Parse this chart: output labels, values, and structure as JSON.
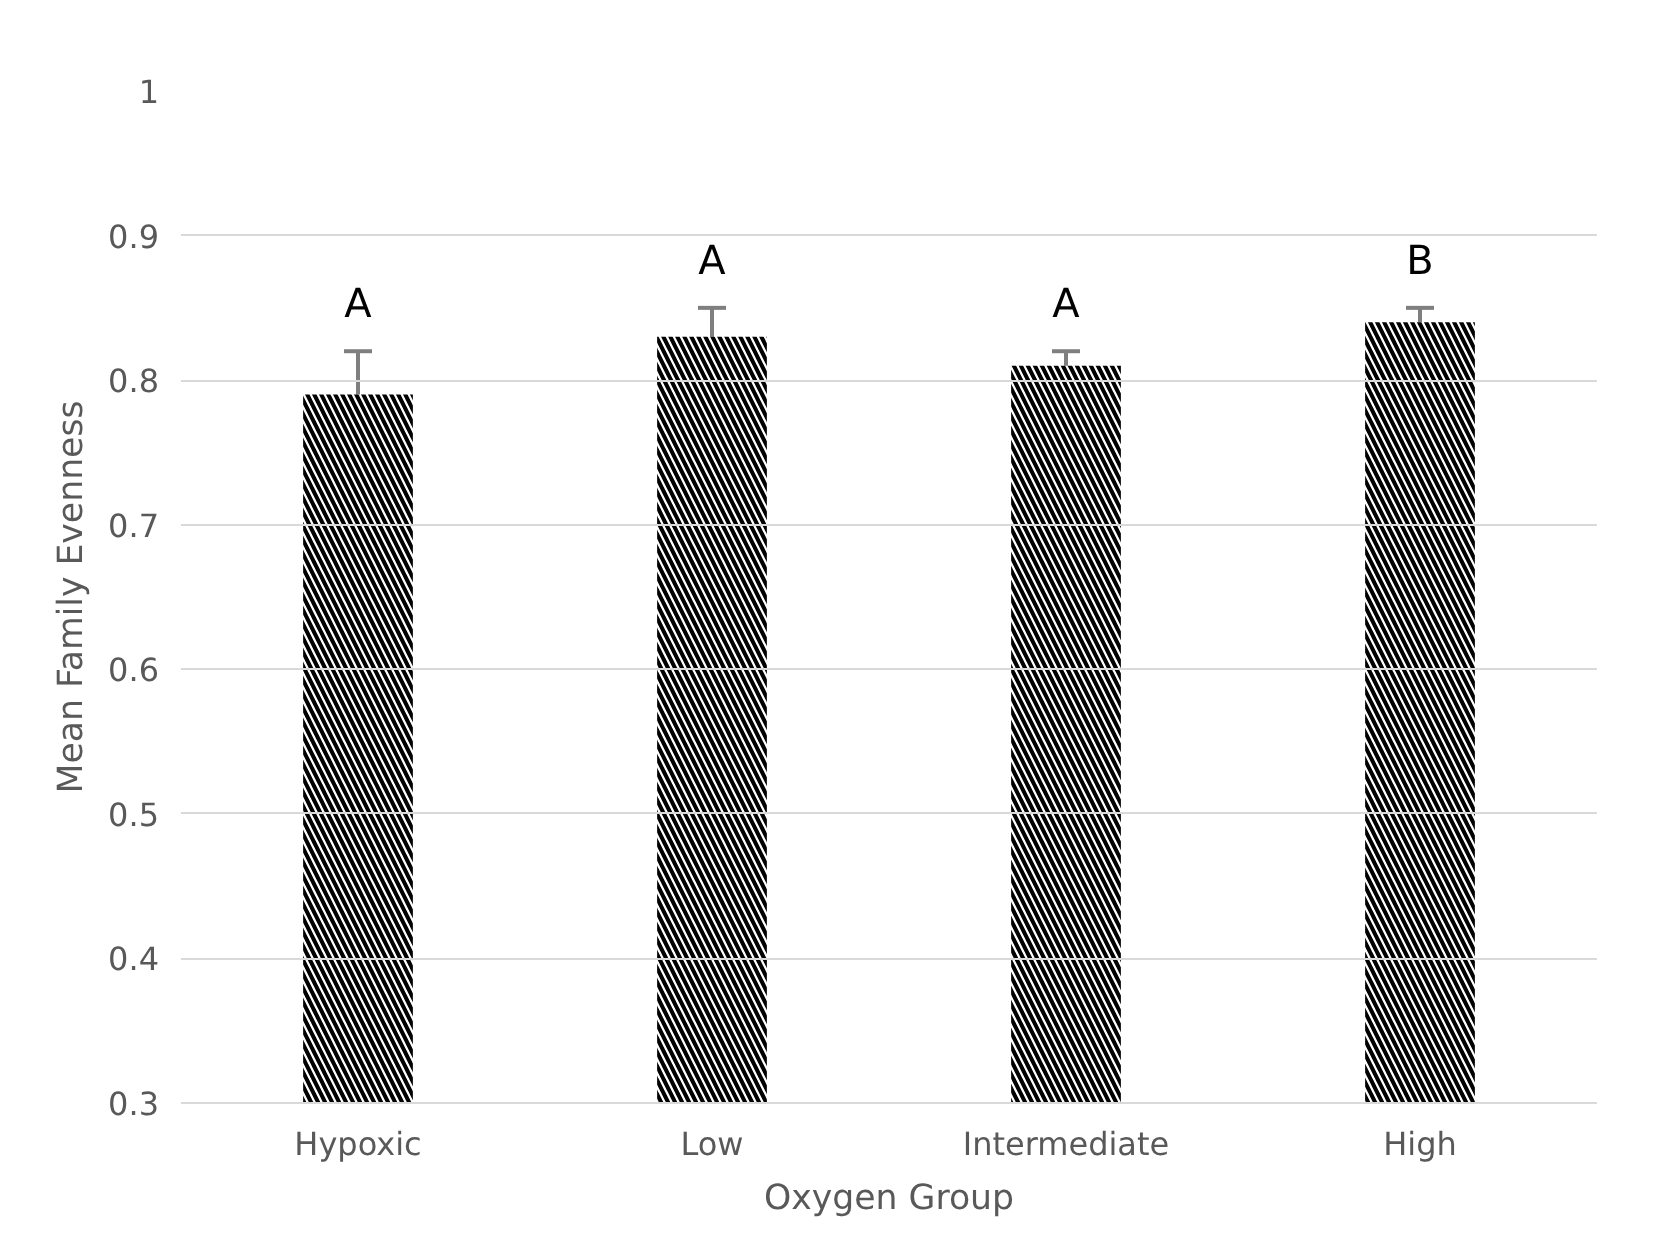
{
  "chart_data": {
    "type": "bar",
    "xlabel": "Oxygen Group",
    "ylabel": "Mean Family Evenness",
    "categories": [
      "Hypoxic",
      "Low",
      "Intermediate",
      "High"
    ],
    "values": [
      0.79,
      0.83,
      0.81,
      0.84
    ],
    "errors": [
      0.03,
      0.02,
      0.01,
      0.01
    ],
    "color": "#000000",
    "ylim": [
      0.3,
      1
    ],
    "yticks": [
      0.3,
      0.4,
      0.5,
      0.6,
      0.7,
      0.8,
      0.9,
      1
    ],
    "grid": "y",
    "annotations": [
      "A",
      "A",
      "A",
      "B"
    ]
  }
}
